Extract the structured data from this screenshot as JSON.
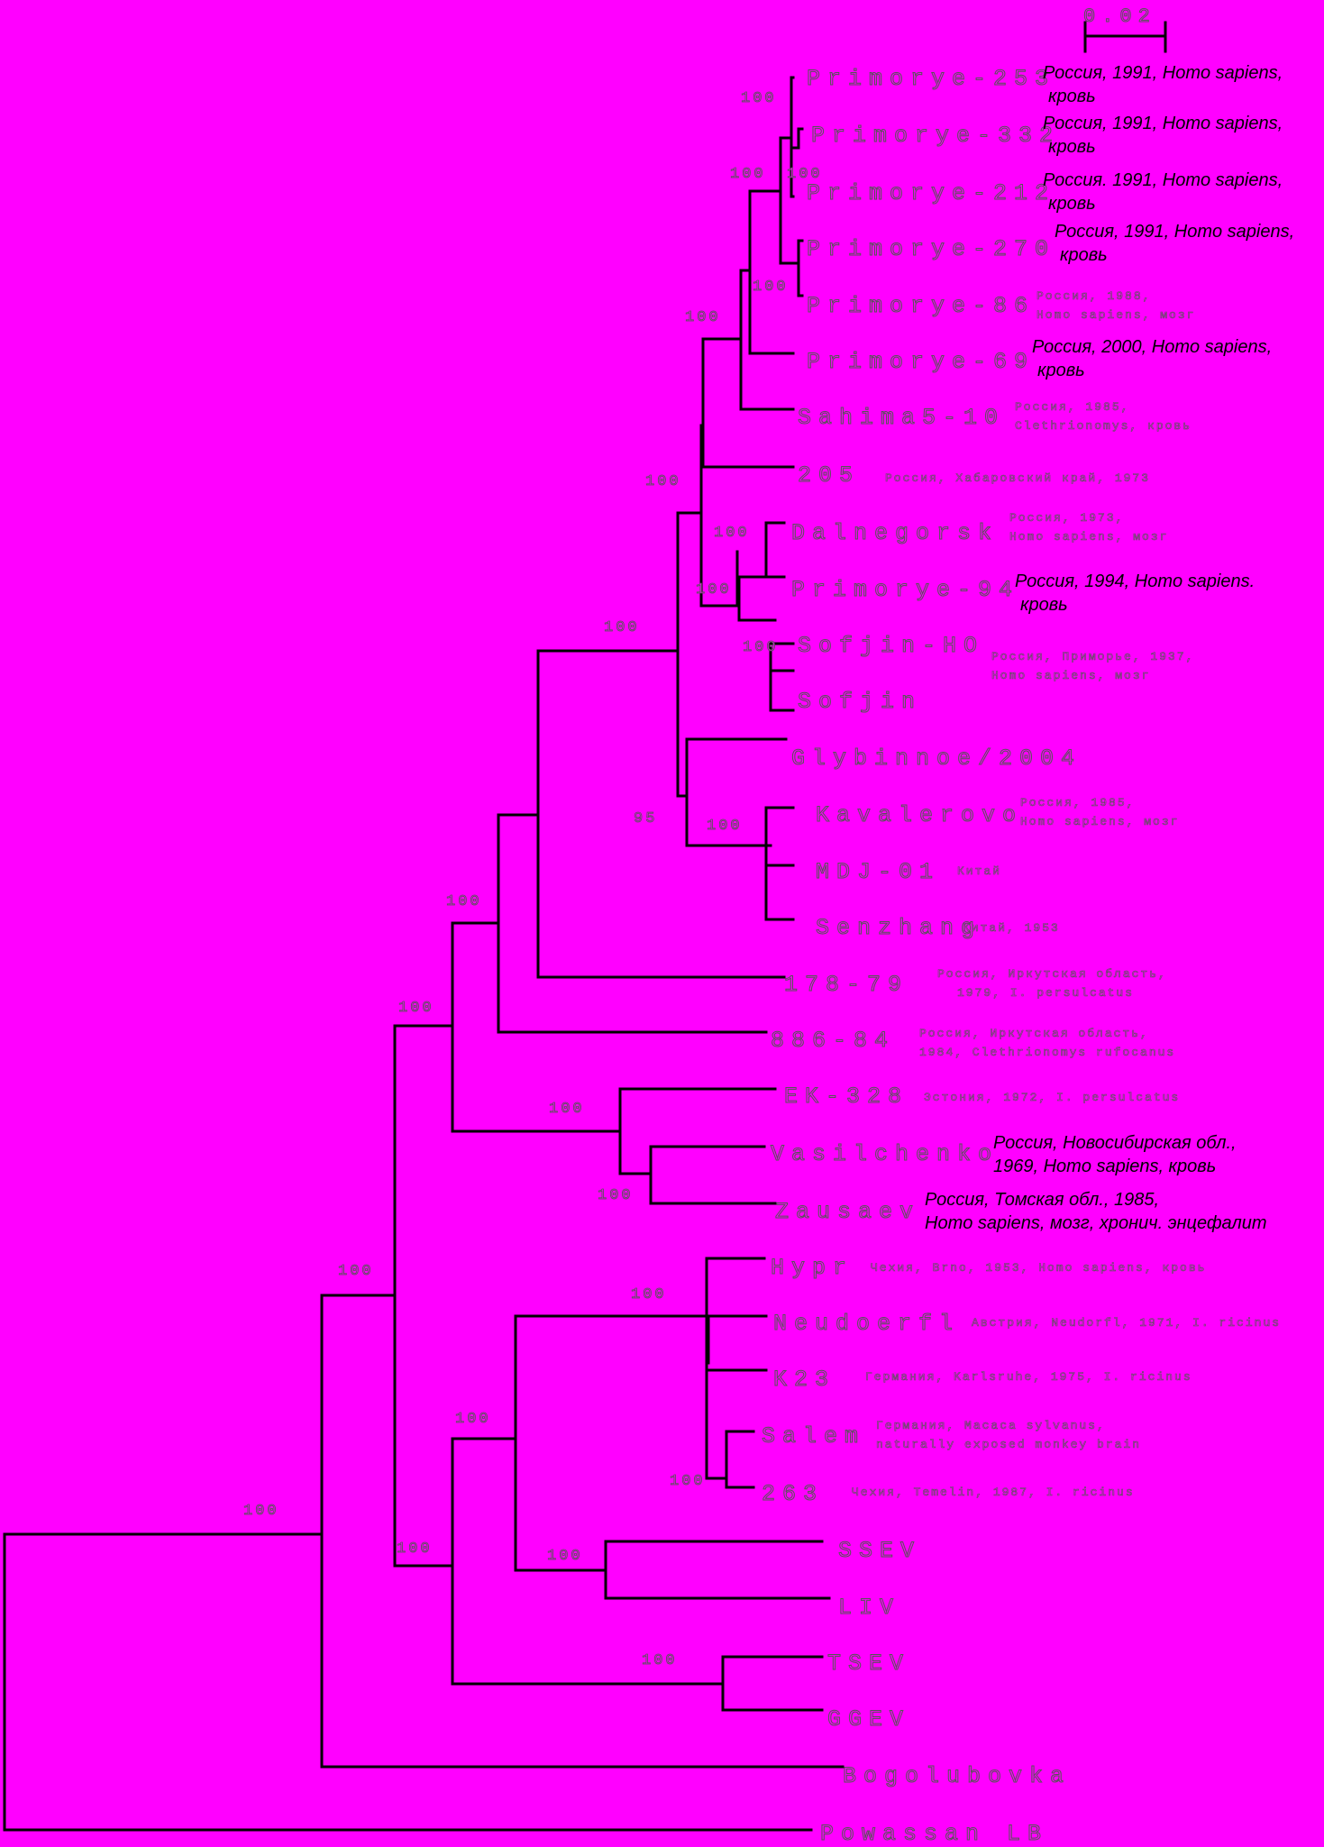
{
  "scale_bar": {
    "label": "0.02"
  },
  "leaves": {
    "primorye_253": "Primorye-253",
    "primorye_332": "Primorye-332",
    "primorye_212": "Primorye-212",
    "primorye_270": "Primorye-270",
    "primorye_86": "Primorye-86",
    "primorye_69": "Primorye-69",
    "sahima5_10": "Sahima5-10",
    "n205": "205",
    "dalnegorsk": "Dalnegorsk",
    "primorye_94": "Primorye-94",
    "sofjin_ho": "Sofjin-HO",
    "sofjin": "Sofjin",
    "glybinnoe": "Glybinnoe/2004",
    "kavalerovo": "Kavalerovo",
    "mdj_01": "MDJ-01",
    "senzhang": "Senzhang",
    "n178_79": "178-79",
    "n886_84": "886-84",
    "ek_328": "EK-328",
    "vasilchenko": "Vasilchenko",
    "zausaev": "Zausaev",
    "hypr": "Hypr",
    "neudoerfl": "Neudoerfl",
    "k23": "K23",
    "salem": "Salem",
    "n263": "263",
    "sseev": "SSEV",
    "liv": "LIV",
    "tsev": "TSEV",
    "gget": "GGEV",
    "bogolubovka": "Bogolubovka",
    "powassan": "Powassan LB"
  },
  "annotations": {
    "primorye_253": [
      "Россия, 1991, Homo sapiens,",
      "кровь"
    ],
    "primorye_332": [
      "Россия, 1991, Homo sapiens,",
      "кровь"
    ],
    "primorye_212": [
      "Россия. 1991, Homo sapiens,",
      "кровь"
    ],
    "primorye_270": [
      "Россия, 1991, Homo sapiens,",
      "кровь"
    ],
    "primorye_86": [
      "Россия, 1988,",
      "Homo sapiens, мозг"
    ],
    "primorye_69": [
      "Россия, 2000, Homo sapiens,",
      "кровь"
    ],
    "sahima5_10": [
      "Россия, 1985,",
      "Clethrionomys, кровь"
    ],
    "n205": [
      "Россия, Хабаровский край, 1973"
    ],
    "dalnegorsk": [
      "Россия, 1973,",
      "Homo sapiens, мозг"
    ],
    "primorye_94": [
      "Россия, 1994, Homo sapiens.",
      "кровь"
    ],
    "sofjin": [
      "Россия, Приморье, 1937,",
      "Homo sapiens, мозг"
    ],
    "kavalerovo": [
      "Россия, 1985,",
      "Homo sapiens, мозг"
    ],
    "mdj_01": [
      "Китай"
    ],
    "senzhang": [
      "Китай, 1953"
    ],
    "n178_79": [
      "Россия, Иркутская область,",
      "1979, I. persulcatus"
    ],
    "n886_84": [
      "Россия, Иркутская область,",
      "1984, Clethrionomys rufocanus"
    ],
    "ek_328": [
      "Эстония, 1972, I. persulcatus"
    ],
    "vasilchenko": [
      "Россия, Новосибирская обл.,",
      "1969, Homo sapiens, кровь"
    ],
    "zausaev": [
      "Россия, Томская обл., 1985,",
      "Homo sapiens, мозг, хронич. энцефалит"
    ],
    "hypr": [
      "Чехия, Brno, 1953, Homo sapiens, кровь"
    ],
    "neudoerfl": [
      "Австрия, Neudorfl, 1971, I. ricinus"
    ],
    "k23": [
      "Германия, Karlsruhe, 1975, I. ricinus"
    ],
    "salem": [
      "Германия, Macaca sylvanus,",
      "naturally exposed monkey brain"
    ],
    "n263": [
      "Чехия, Temelin, 1987, I. ricinus"
    ]
  },
  "bootstrap_values": {
    "b1": "100",
    "b2": "100",
    "b3": "100",
    "b4": "100",
    "b5": "100",
    "b6": "100",
    "b7": "100",
    "b8": "100",
    "b9": "100",
    "b10": "100",
    "b11": "100",
    "b12": "95",
    "b13": "100",
    "b14": "100",
    "b15": "100",
    "b16": "100",
    "b17": "100",
    "b18": "100",
    "b19": "100",
    "b20": "100",
    "b21": "100",
    "b22": "100",
    "b23": "100",
    "b24": "100"
  }
}
